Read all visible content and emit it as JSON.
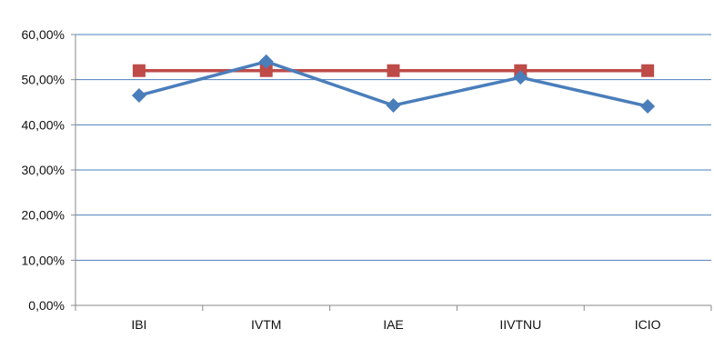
{
  "chart_data": {
    "type": "line",
    "title": "",
    "xlabel": "",
    "ylabel": "",
    "categories": [
      "IBI",
      "IVTM",
      "IAE",
      "IIVTNU",
      "ICIO"
    ],
    "y_tick_labels": [
      "0,00%",
      "10,00%",
      "20,00%",
      "30,00%",
      "40,00%",
      "50,00%",
      "60,00%"
    ],
    "ylim": [
      0,
      0.6
    ],
    "y_tick_step": 0.1,
    "grid": true,
    "legend": "none",
    "series": [
      {
        "values": [
          0.465,
          0.54,
          0.443,
          0.505,
          0.441
        ],
        "color": "#4a7ebb",
        "marker": "diamond"
      },
      {
        "values": [
          0.52,
          0.52,
          0.52,
          0.52,
          0.52
        ],
        "color": "#be4b48",
        "marker": "square"
      }
    ]
  }
}
